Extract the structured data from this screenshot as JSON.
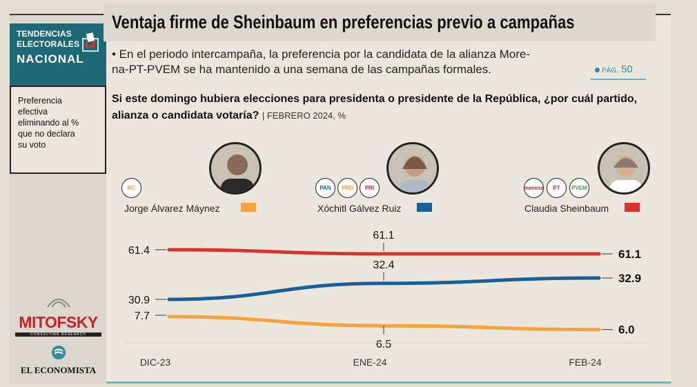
{
  "sidebar": {
    "badge_line1": "TENDENCIAS",
    "badge_line2": "ELECTORALES",
    "badge_line3": "NACIONAL",
    "note_lines": [
      "Preferencia",
      "efectiva",
      "eliminando al %",
      "que no declara",
      "su voto"
    ],
    "mitofsky": "MITOFSKY",
    "mitofsky_sub": "CONSULTING  RESEARCH",
    "economista": "EL ECONOMISTA"
  },
  "header": {
    "headline": "Ventaja firme de Sheinbaum en preferencias previo a campañas",
    "bullet_line1": "• En el periodo intercampaña, la preferencia por la candidata de la alianza More-",
    "bullet_line2": "na-PT-PVEM se ha mantenido a una semana de las campañas formales.",
    "pag_prefix": "PÁG.",
    "pag_number": "50"
  },
  "question": {
    "line1": "Si este domingo hubiera elecciones para presidenta o presidente de la República, ¿por cuál partido,",
    "line2": "alianza o candidata votaría?",
    "date": "| FEBRERO 2024, %"
  },
  "candidates": [
    {
      "name": "Jorge Álvarez Máynez",
      "color": "#f5a33a",
      "parties": [
        "MC"
      ]
    },
    {
      "name": "Xóchitl Gálvez Ruiz",
      "color": "#1a5e9a",
      "parties": [
        "PAN",
        "PRD",
        "PRI"
      ]
    },
    {
      "name": "Claudia Sheinbaum",
      "color": "#d9342b",
      "parties": [
        "morena",
        "PT",
        "PVEM"
      ]
    }
  ],
  "chart_data": {
    "type": "line",
    "categories": [
      "DIC-23",
      "ENE-24",
      "FEB-24"
    ],
    "series": [
      {
        "name": "Claudia Sheinbaum",
        "color": "#d9342b",
        "values": [
          61.4,
          61.1,
          61.1
        ],
        "labels": [
          "61.4",
          "61.1",
          "61.1"
        ]
      },
      {
        "name": "Xóchitl Gálvez Ruiz",
        "color": "#1a5e9a",
        "values": [
          30.9,
          32.4,
          32.9
        ],
        "labels": [
          "30.9",
          "32.4",
          "32.9"
        ]
      },
      {
        "name": "Jorge Álvarez Máynez",
        "color": "#f5a33a",
        "values": [
          7.7,
          6.5,
          6.0
        ],
        "labels": [
          "7.7",
          "6.5",
          "6.0"
        ]
      }
    ],
    "unit": "%",
    "grid": false,
    "legend": "top"
  }
}
